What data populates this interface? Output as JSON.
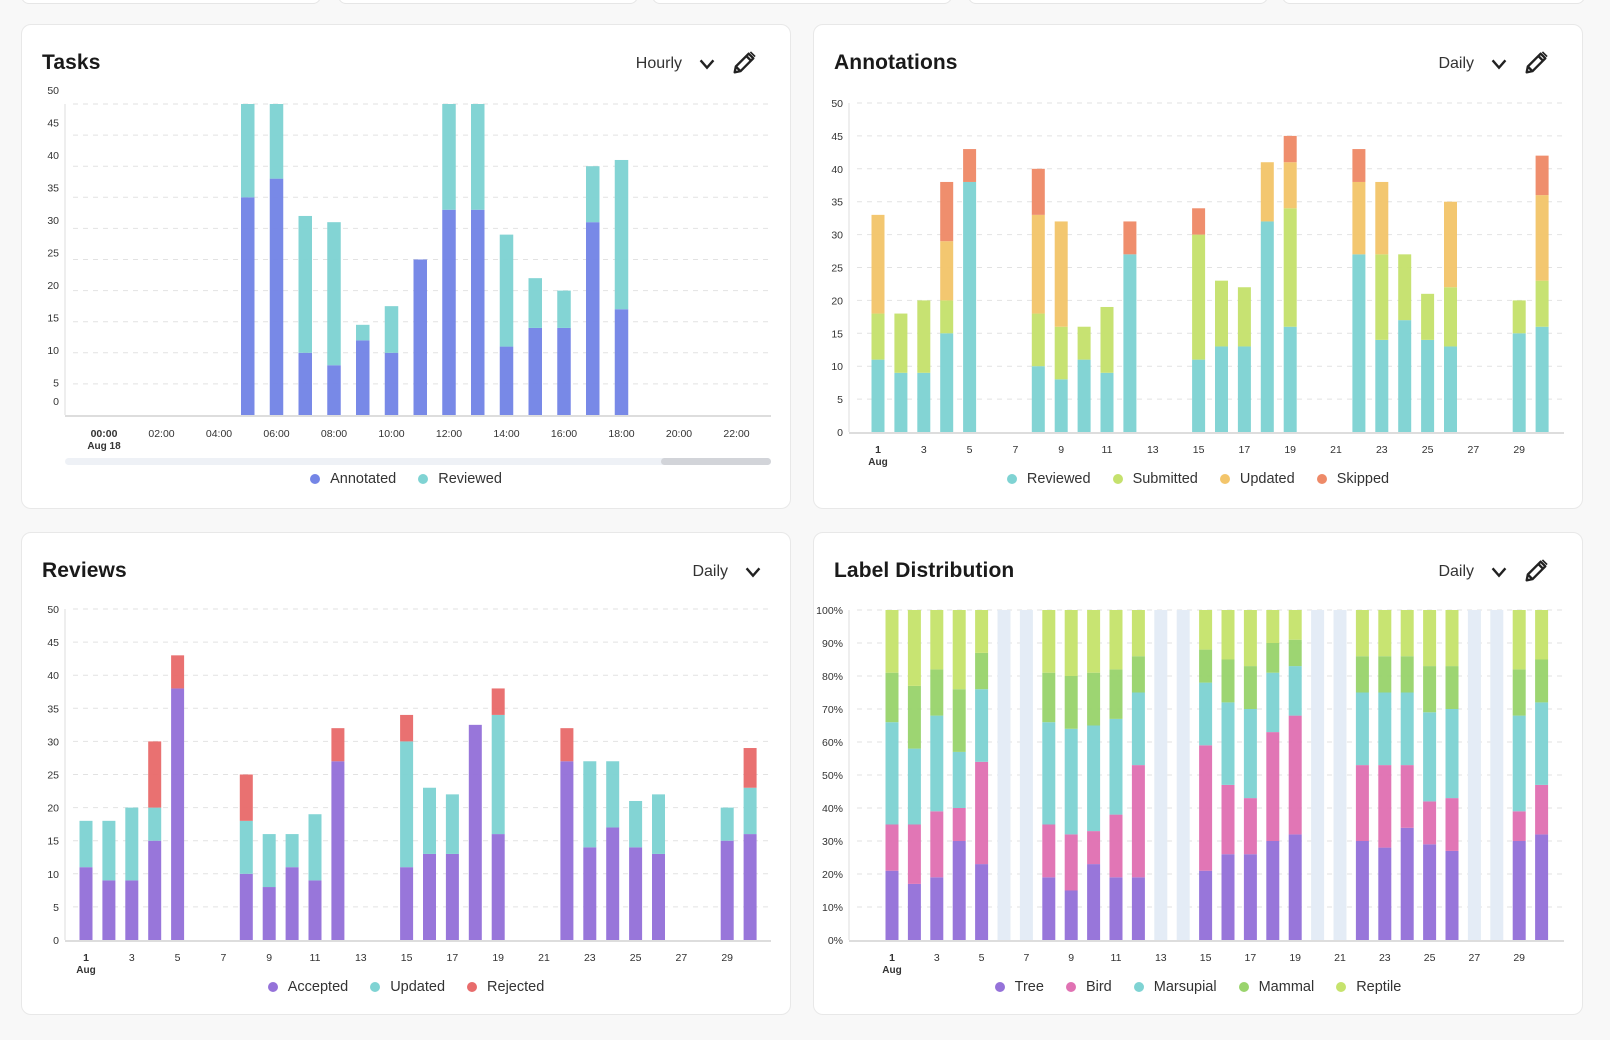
{
  "colors": {
    "annotated": "#7485e6",
    "reviewed": "#7fd3d3",
    "submitted": "#c5e16d",
    "updated": "#f3c56b",
    "skipped": "#ee8a68",
    "accepted": "#9572d9",
    "rejected": "#e86c6c",
    "tree": "#9572d9",
    "bird": "#e072b3",
    "marsupial": "#7fd3d3",
    "mammal": "#9ad46d",
    "reptile": "#c6e36d",
    "empty_day": "#e4ecf6",
    "grid": "#e2e2e2"
  },
  "cards": [
    {
      "title": "Tasks",
      "period": "Hourly",
      "has_edit": true
    },
    {
      "title": "Annotations",
      "period": "Daily",
      "has_edit": true
    },
    {
      "title": "Reviews",
      "period": "Daily",
      "has_edit": false
    },
    {
      "title": "Label Distribution",
      "period": "Daily",
      "has_edit": true
    }
  ],
  "chart_data": [
    {
      "type": "bar",
      "stacked": true,
      "title": "Tasks",
      "grid": true,
      "legend": "bottom",
      "categories": [
        0,
        1,
        2,
        3,
        4,
        5,
        6,
        7,
        8,
        9,
        10,
        11,
        12,
        13,
        14,
        15,
        16,
        17,
        18,
        19,
        20,
        21,
        22,
        23
      ],
      "xticks": [
        "00:00",
        "02:00",
        "04:00",
        "06:00",
        "08:00",
        "10:00",
        "12:00",
        "14:00",
        "16:00",
        "18:00",
        "20:00",
        "22:00"
      ],
      "xtick_sublabel": "Aug 18",
      "yticks": [
        "0",
        "5",
        "10",
        "15",
        "20",
        "25",
        "30",
        "35",
        "40",
        "45",
        "50"
      ],
      "ylim": [
        0,
        50
      ],
      "has_scrollbar": true,
      "series": [
        {
          "name": "Annotated",
          "color_key": "annotated",
          "values": [
            0,
            0,
            0,
            0,
            0,
            35,
            38,
            10,
            8,
            12,
            10,
            25,
            33,
            33,
            11,
            14,
            14,
            31,
            17,
            0,
            0,
            0,
            0,
            0
          ]
        },
        {
          "name": "Reviewed",
          "color_key": "reviewed",
          "values": [
            0,
            0,
            0,
            0,
            0,
            15,
            12,
            22,
            23,
            2.5,
            7.5,
            0,
            17,
            17,
            18,
            8,
            6,
            9,
            24,
            0,
            0,
            0,
            0,
            0
          ]
        }
      ]
    },
    {
      "type": "bar",
      "stacked": true,
      "title": "Annotations",
      "grid": true,
      "legend": "bottom",
      "categories": [
        1,
        2,
        3,
        4,
        5,
        6,
        7,
        8,
        9,
        10,
        11,
        12,
        13,
        14,
        15,
        16,
        17,
        18,
        19,
        20,
        21,
        22,
        23,
        24,
        25,
        26,
        27,
        28,
        29,
        30
      ],
      "xticks": [
        "1",
        "3",
        "5",
        "7",
        "9",
        "11",
        "13",
        "15",
        "17",
        "19",
        "21",
        "23",
        "25",
        "27",
        "29"
      ],
      "xtick_sublabel": "Aug",
      "yticks": [
        "0",
        "5",
        "10",
        "15",
        "20",
        "25",
        "30",
        "35",
        "40",
        "45",
        "50"
      ],
      "ylim": [
        0,
        50
      ],
      "series": [
        {
          "name": "Reviewed",
          "color_key": "reviewed",
          "values": [
            11,
            9,
            9,
            15,
            38,
            0,
            0,
            10,
            8,
            11,
            9,
            27,
            0,
            0,
            11,
            13,
            13,
            32,
            16,
            0,
            0,
            27,
            14,
            17,
            14,
            13,
            0,
            0,
            15,
            16
          ]
        },
        {
          "name": "Submitted",
          "color_key": "submitted",
          "values": [
            7,
            9,
            11,
            5,
            0,
            0,
            0,
            8,
            8,
            5,
            10,
            0,
            0,
            0,
            19,
            10,
            9,
            0,
            18,
            0,
            0,
            0,
            13,
            10,
            7,
            9,
            0,
            0,
            5,
            7
          ]
        },
        {
          "name": "Updated",
          "color_key": "updated",
          "values": [
            15,
            0,
            0,
            9,
            0,
            0,
            0,
            15,
            16,
            0,
            0,
            0,
            0,
            0,
            0,
            0,
            0,
            9,
            7,
            0,
            0,
            11,
            11,
            0,
            0,
            13,
            0,
            0,
            0,
            13
          ]
        },
        {
          "name": "Skipped",
          "color_key": "skipped",
          "values": [
            0,
            0,
            0,
            9,
            5,
            0,
            0,
            7,
            0,
            0,
            0,
            5,
            0,
            0,
            4,
            0,
            0,
            0,
            4,
            0,
            0,
            5,
            0,
            0,
            0,
            0,
            0,
            0,
            0,
            6
          ]
        }
      ]
    },
    {
      "type": "bar",
      "stacked": true,
      "title": "Reviews",
      "grid": true,
      "legend": "bottom",
      "categories": [
        1,
        2,
        3,
        4,
        5,
        6,
        7,
        8,
        9,
        10,
        11,
        12,
        13,
        14,
        15,
        16,
        17,
        18,
        19,
        20,
        21,
        22,
        23,
        24,
        25,
        26,
        27,
        28,
        29,
        30
      ],
      "xticks": [
        "1",
        "3",
        "5",
        "7",
        "9",
        "11",
        "13",
        "15",
        "17",
        "19",
        "21",
        "23",
        "25",
        "27",
        "29"
      ],
      "xtick_sublabel": "Aug",
      "yticks": [
        "0",
        "5",
        "10",
        "15",
        "20",
        "25",
        "30",
        "35",
        "40",
        "45",
        "50"
      ],
      "ylim": [
        0,
        50
      ],
      "series": [
        {
          "name": "Accepted",
          "color_key": "accepted",
          "values": [
            11,
            9,
            9,
            15,
            38,
            0,
            0,
            10,
            8,
            11,
            9,
            27,
            0,
            0,
            11,
            13,
            13,
            32.5,
            16,
            0,
            0,
            27,
            14,
            17,
            14,
            13,
            0,
            0,
            15,
            16
          ]
        },
        {
          "name": "Updated",
          "color_key": "reviewed",
          "values": [
            7,
            9,
            11,
            5,
            0,
            0,
            0,
            8,
            8,
            5,
            10,
            0,
            0,
            0,
            19,
            10,
            9,
            0,
            18,
            0,
            0,
            0,
            13,
            10,
            7,
            9,
            0,
            0,
            5,
            7
          ]
        },
        {
          "name": "Rejected",
          "color_key": "rejected",
          "values": [
            0,
            0,
            0,
            10,
            5,
            0,
            0,
            7,
            0,
            0,
            0,
            5,
            0,
            0,
            4,
            0,
            0,
            0,
            4,
            0,
            0,
            5,
            0,
            0,
            0,
            0,
            0,
            0,
            0,
            6
          ]
        }
      ]
    },
    {
      "type": "bar",
      "stacked": true,
      "percent": true,
      "title": "Label Distribution",
      "grid": true,
      "legend": "bottom",
      "categories": [
        1,
        2,
        3,
        4,
        5,
        6,
        7,
        8,
        9,
        10,
        11,
        12,
        13,
        14,
        15,
        16,
        17,
        18,
        19,
        20,
        21,
        22,
        23,
        24,
        25,
        26,
        27,
        28,
        29,
        30
      ],
      "xticks": [
        "1",
        "3",
        "5",
        "7",
        "9",
        "11",
        "13",
        "15",
        "17",
        "19",
        "21",
        "23",
        "25",
        "27",
        "29"
      ],
      "xtick_sublabel": "Aug",
      "yticks": [
        "0%",
        "10%",
        "20%",
        "30%",
        "40%",
        "50%",
        "60%",
        "70%",
        "80%",
        "90%",
        "100%"
      ],
      "ylim": [
        0,
        100
      ],
      "series": [
        {
          "name": "Tree",
          "color_key": "tree",
          "values": [
            21,
            17,
            19,
            30,
            23,
            0,
            0,
            19,
            15,
            23,
            19,
            19,
            0,
            0,
            21,
            26,
            26,
            30,
            32,
            0,
            0,
            30,
            28,
            34,
            29,
            27,
            0,
            0,
            30,
            32
          ]
        },
        {
          "name": "Bird",
          "color_key": "bird",
          "values": [
            14,
            18,
            20,
            10,
            31,
            0,
            0,
            16,
            17,
            10,
            19,
            34,
            0,
            0,
            38,
            21,
            17,
            33,
            36,
            0,
            0,
            23,
            25,
            19,
            13,
            16,
            0,
            0,
            9,
            15
          ]
        },
        {
          "name": "Marsupial",
          "color_key": "marsupial",
          "values": [
            31,
            23,
            29,
            17,
            22,
            0,
            0,
            31,
            32,
            32,
            29,
            22,
            0,
            0,
            19,
            25,
            27,
            18,
            15,
            0,
            0,
            22,
            22,
            22,
            27,
            27,
            0,
            0,
            29,
            25
          ]
        },
        {
          "name": "Mammal",
          "color_key": "mammal",
          "values": [
            15,
            19,
            14,
            19,
            11,
            0,
            0,
            15,
            16,
            16,
            15,
            11,
            0,
            0,
            10,
            13,
            13,
            9,
            8,
            0,
            0,
            11,
            11,
            11,
            14,
            13,
            0,
            0,
            14,
            13
          ]
        },
        {
          "name": "Reptile",
          "color_key": "reptile",
          "values": [
            19,
            23,
            18,
            24,
            13,
            0,
            0,
            19,
            20,
            19,
            18,
            14,
            0,
            0,
            12,
            15,
            17,
            10,
            9,
            0,
            0,
            14,
            14,
            14,
            17,
            17,
            0,
            0,
            18,
            15
          ]
        }
      ]
    }
  ]
}
